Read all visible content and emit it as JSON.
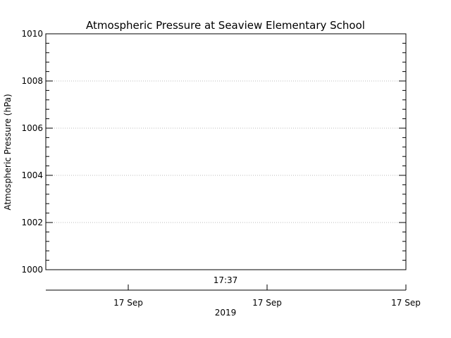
{
  "chart_data": {
    "type": "line",
    "title": "Atmospheric Pressure at Seaview Elementary School",
    "xlabel": "2019",
    "ylabel": "Atmospheric Pressure (hPa)",
    "ylim": [
      1000,
      1010
    ],
    "yticks": [
      1000,
      1002,
      1004,
      1006,
      1008,
      1010
    ],
    "grid": true,
    "time_annotation": "17:37",
    "x_tick_labels": [
      "17 Sep",
      "17 Sep",
      "17 Sep"
    ],
    "series": [
      {
        "values": []
      }
    ]
  }
}
